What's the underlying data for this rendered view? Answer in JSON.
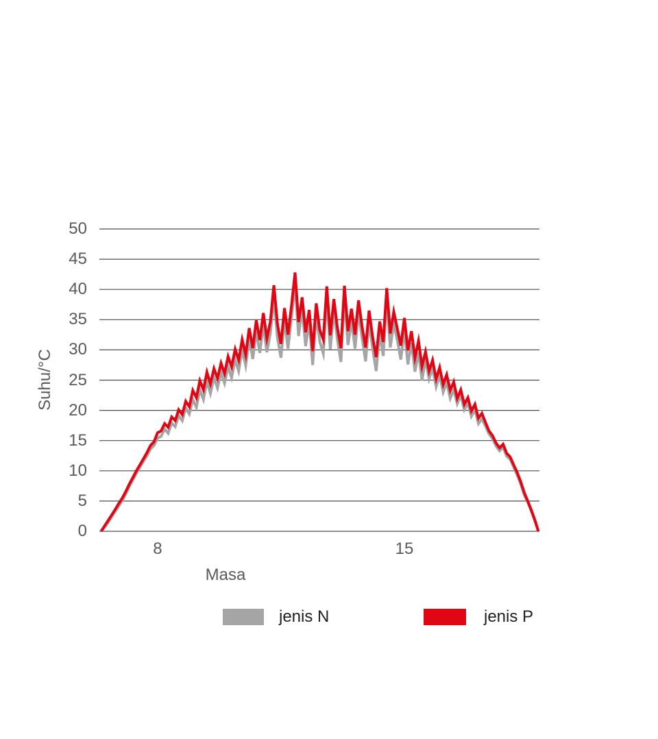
{
  "page": {
    "background_color": "#ffffff"
  },
  "chart_data": {
    "type": "line",
    "title": "",
    "xlabel": "Masa",
    "ylabel": "Suhu/°C",
    "grid": "horizontal",
    "gridline_color": "#4d4d4d",
    "axis_text_color": "#595959",
    "legend_text_color": "#1f1f1f",
    "legend_position": "bottom",
    "xlim": [
      6.35,
      18.83
    ],
    "ylim": [
      0,
      50
    ],
    "y_ticks": [
      0,
      5,
      10,
      15,
      20,
      25,
      30,
      35,
      40,
      45,
      50
    ],
    "x_ticks": [
      {
        "value": 8,
        "label": "8"
      },
      {
        "value": 15,
        "label": "15"
      }
    ],
    "x": [
      6.4,
      6.5,
      6.6,
      6.7,
      6.8,
      6.9,
      7.0,
      7.1,
      7.2,
      7.3,
      7.4,
      7.5,
      7.6,
      7.7,
      7.8,
      7.9,
      8.0,
      8.1,
      8.2,
      8.3,
      8.4,
      8.5,
      8.6,
      8.7,
      8.8,
      8.9,
      9.0,
      9.1,
      9.2,
      9.3,
      9.4,
      9.5,
      9.6,
      9.7,
      9.8,
      9.9,
      10.0,
      10.1,
      10.2,
      10.3,
      10.4,
      10.5,
      10.6,
      10.7,
      10.8,
      10.9,
      11.0,
      11.1,
      11.2,
      11.3,
      11.4,
      11.5,
      11.6,
      11.7,
      11.8,
      11.9,
      12.0,
      12.1,
      12.2,
      12.3,
      12.4,
      12.5,
      12.6,
      12.7,
      12.8,
      12.9,
      13.0,
      13.1,
      13.2,
      13.3,
      13.4,
      13.5,
      13.6,
      13.7,
      13.8,
      13.9,
      14.0,
      14.1,
      14.2,
      14.3,
      14.4,
      14.5,
      14.6,
      14.7,
      14.8,
      14.9,
      15.0,
      15.1,
      15.2,
      15.3,
      15.4,
      15.5,
      15.6,
      15.7,
      15.8,
      15.9,
      16.0,
      16.1,
      16.2,
      16.3,
      16.4,
      16.5,
      16.6,
      16.7,
      16.8,
      16.9,
      17.0,
      17.1,
      17.2,
      17.3,
      17.4,
      17.5,
      17.6,
      17.7,
      17.8,
      17.9,
      18.0,
      18.1,
      18.2,
      18.3,
      18.4,
      18.5,
      18.6,
      18.7,
      18.8
    ],
    "series": [
      {
        "name": "jenis N",
        "color": "#a5a5a5",
        "values": [
          0.0,
          0.7,
          1.5,
          2.4,
          3.3,
          4.2,
          5.1,
          6.2,
          7.4,
          8.5,
          9.6,
          10.6,
          11.6,
          12.5,
          13.6,
          14.2,
          15.4,
          15.7,
          16.9,
          16.2,
          17.9,
          17.3,
          19.1,
          18.3,
          20.4,
          19.4,
          21.8,
          20.5,
          23.4,
          21.8,
          24.8,
          22.8,
          25.4,
          23.7,
          26.3,
          24.5,
          27.2,
          25.4,
          28.4,
          26.5,
          30.0,
          27.4,
          31.9,
          28.5,
          33.0,
          29.5,
          34.2,
          29.6,
          32.8,
          38.8,
          32.0,
          28.7,
          35.0,
          30.2,
          35.5,
          40.9,
          32.3,
          36.8,
          30.6,
          34.7,
          27.5,
          35.8,
          31.4,
          29.4,
          38.6,
          30.1,
          36.5,
          31.8,
          28.0,
          38.7,
          30.8,
          34.9,
          30.2,
          36.3,
          32.0,
          28.1,
          34.6,
          30.2,
          26.5,
          32.8,
          29.0,
          38.3,
          30.4,
          34.4,
          31.6,
          28.4,
          33.4,
          27.6,
          31.2,
          26.4,
          29.6,
          25.0,
          28.4,
          25.2,
          27.0,
          23.9,
          25.8,
          23.0,
          24.6,
          22.0,
          23.4,
          21.1,
          22.5,
          20.1,
          21.2,
          19.0,
          20.1,
          17.8,
          18.6,
          17.4,
          16.1,
          15.3,
          14.1,
          13.3,
          13.9,
          12.4,
          11.9,
          10.6,
          9.3,
          7.8,
          6.0,
          4.8,
          3.3,
          1.7,
          0.0
        ]
      },
      {
        "name": "jenis P",
        "color": "#e00613",
        "values": [
          0.0,
          0.9,
          1.8,
          2.7,
          3.6,
          4.6,
          5.5,
          6.6,
          7.8,
          8.9,
          10.0,
          11.0,
          12.0,
          13.0,
          14.2,
          14.8,
          16.3,
          16.6,
          17.8,
          17.2,
          18.9,
          18.3,
          20.1,
          19.3,
          21.5,
          20.6,
          23.3,
          22.1,
          24.9,
          23.4,
          26.3,
          24.4,
          26.9,
          25.3,
          27.8,
          26.1,
          28.9,
          27.2,
          30.1,
          28.3,
          31.7,
          29.2,
          33.6,
          30.3,
          34.9,
          31.6,
          36.1,
          31.9,
          34.7,
          40.7,
          34.3,
          31.0,
          36.9,
          32.5,
          37.4,
          42.8,
          34.6,
          38.7,
          32.9,
          36.6,
          29.8,
          37.7,
          33.3,
          31.7,
          40.5,
          32.4,
          38.4,
          33.7,
          30.3,
          40.6,
          33.1,
          36.8,
          32.5,
          38.2,
          33.9,
          30.4,
          36.5,
          32.1,
          28.8,
          34.7,
          31.3,
          40.2,
          32.7,
          36.3,
          33.5,
          30.7,
          35.3,
          29.9,
          33.1,
          28.7,
          31.5,
          27.3,
          29.7,
          26.5,
          28.3,
          25.2,
          27.1,
          24.3,
          25.9,
          23.3,
          24.7,
          22.0,
          23.4,
          21.0,
          22.1,
          19.9,
          21.0,
          18.7,
          19.5,
          18.0,
          16.6,
          15.8,
          14.6,
          13.8,
          14.4,
          12.9,
          12.3,
          11.0,
          9.7,
          8.2,
          6.4,
          5.0,
          3.5,
          1.9,
          0.0
        ]
      }
    ]
  }
}
